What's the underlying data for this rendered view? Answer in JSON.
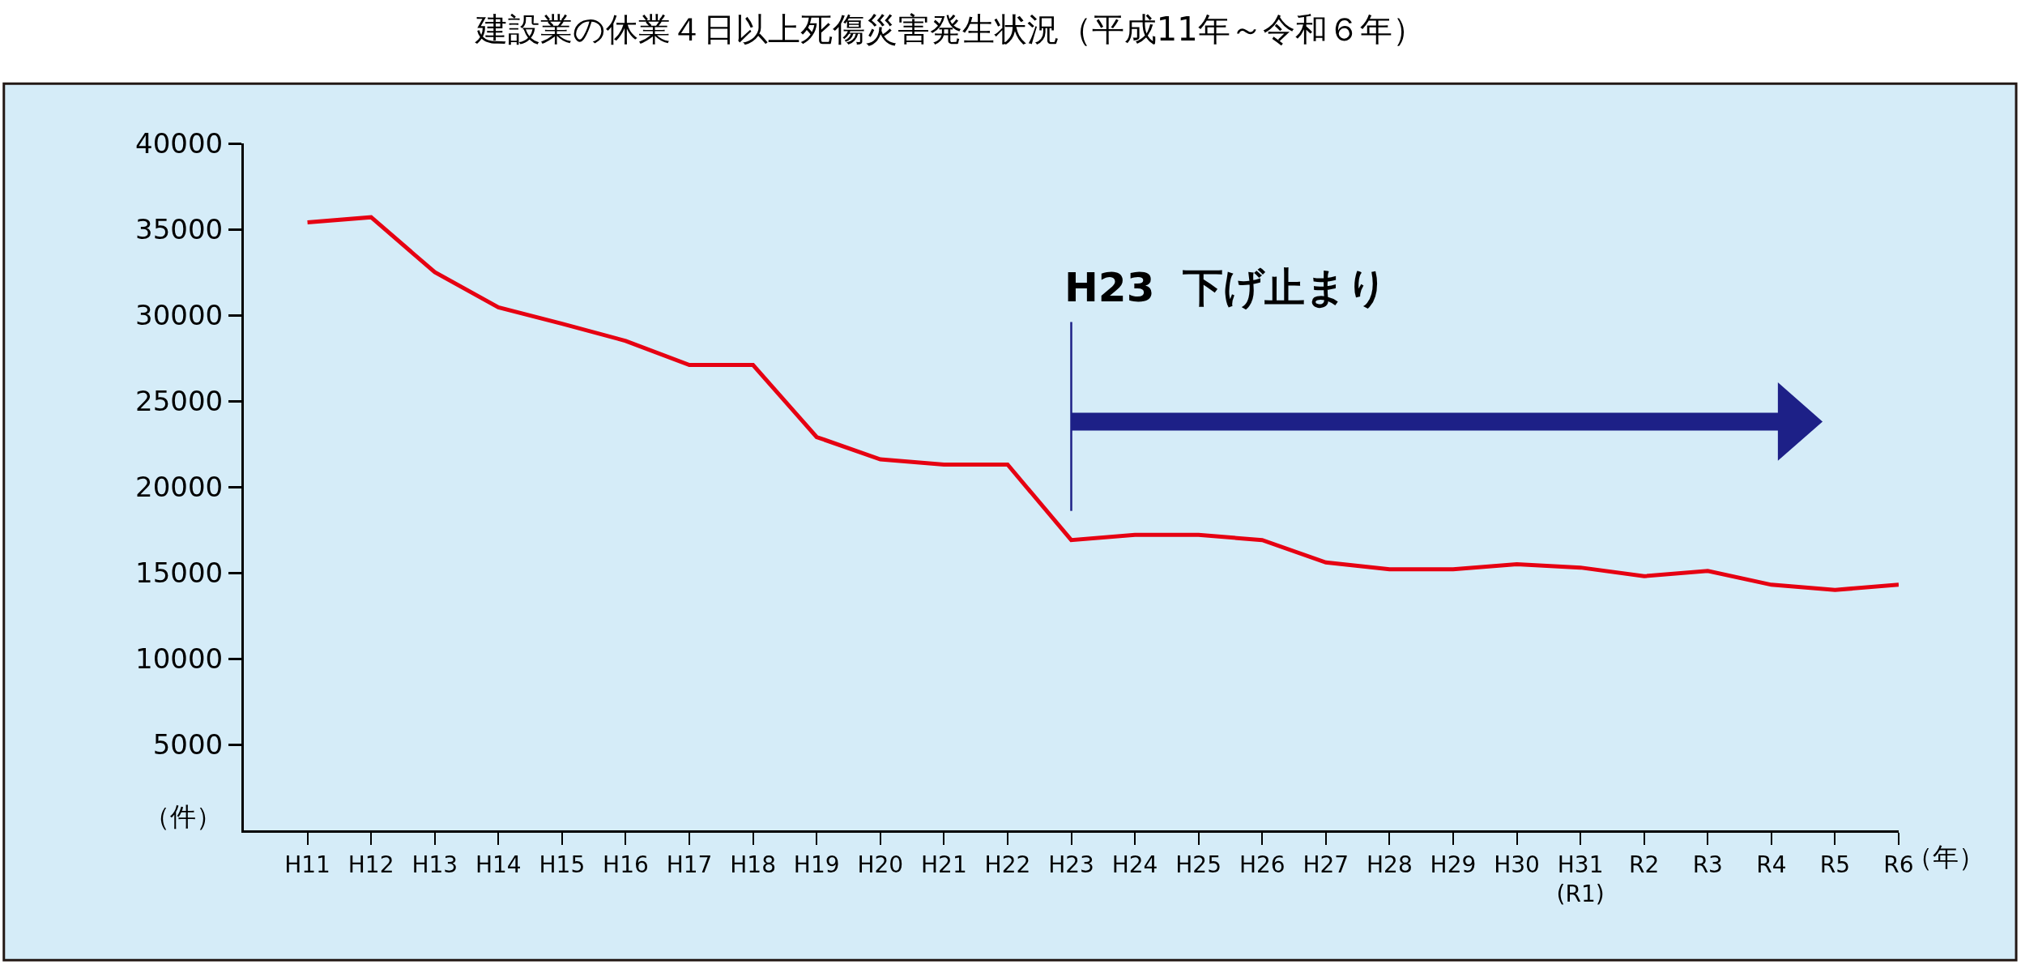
{
  "chart_data": {
    "type": "line",
    "title": "建設業の休業４日以上死傷災害発生状況（平成11年～令和６年）",
    "xlabel": "（年）",
    "ylabel": "（件）",
    "categories": [
      "H11",
      "H12",
      "H13",
      "H14",
      "H15",
      "H16",
      "H17",
      "H18",
      "H19",
      "H20",
      "H21",
      "H22",
      "H23",
      "H24",
      "H25",
      "H26",
      "H27",
      "H28",
      "H29",
      "H30",
      "H31\n(R1)",
      "R2",
      "R3",
      "R4",
      "R5",
      "R6"
    ],
    "series": [
      {
        "color": "#e60012",
        "values": [
          35400,
          35700,
          32500,
          30450,
          29500,
          28500,
          27100,
          27100,
          22900,
          21600,
          21300,
          21300,
          16900,
          17200,
          17200,
          16900,
          15600,
          15200,
          15200,
          15500,
          15300,
          14800,
          15100,
          14300,
          14000,
          14300
        ]
      }
    ],
    "ylim": [
      0,
      40000
    ],
    "yticks": [
      5000,
      10000,
      15000,
      20000,
      25000,
      30000,
      35000,
      40000
    ],
    "grid": false,
    "marker": "none",
    "line_style": "solid",
    "annotations": [
      "H23  下げ止まり"
    ]
  }
}
